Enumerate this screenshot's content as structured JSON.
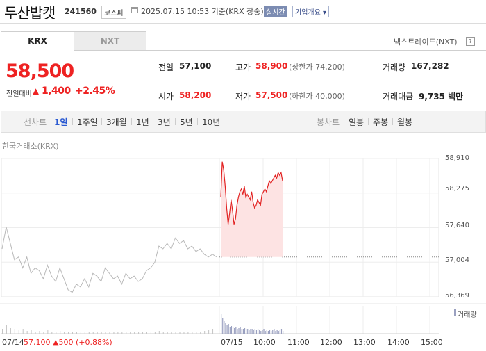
{
  "header": {
    "title": "두산밥캣",
    "code": "241560",
    "market": "코스피",
    "datetime": "2025.07.15 10:53 기준(KRX 장중)",
    "realtime": "실시간",
    "company_info": "기업개요 ▾"
  },
  "tabs": {
    "krx": "KRX",
    "nxt": "NXT"
  },
  "nxt_link": "넥스트레이드(NXT)",
  "help_icon": "?",
  "price": {
    "current": "58,500",
    "prev_label": "전일대비",
    "up_symbol": "▲",
    "change": "1,400",
    "rate": "+2.45%"
  },
  "stats": {
    "prev_close": {
      "label": "전일",
      "value": "57,100"
    },
    "high": {
      "label": "고가",
      "value": "58,900",
      "sub": "(상한가 74,200)"
    },
    "volume": {
      "label": "거래량",
      "value": "167,282"
    },
    "open": {
      "label": "시가",
      "value": "58,200"
    },
    "low": {
      "label": "저가",
      "value": "57,500",
      "sub": "(하한가 40,000)"
    },
    "amount": {
      "label": "거래대금",
      "value": "9,735 백만"
    }
  },
  "toolbar": {
    "line_label": "선차트",
    "periods": [
      "1일",
      "1주일",
      "3개월",
      "1년",
      "3년",
      "5년",
      "10년"
    ],
    "candle_label": "봉차트",
    "candle_periods": [
      "일봉",
      "주봉",
      "월봉"
    ]
  },
  "chart_source": "한국거래소(KRX)",
  "colors": {
    "up": "#e22222",
    "active": "#2c5bd2",
    "fill": "#fde3e3"
  },
  "chart_data": {
    "type": "line",
    "y_ticks": [
      "58,910",
      "58,275",
      "57,640",
      "57,004",
      "56,369"
    ],
    "ylim": [
      56369,
      58910
    ],
    "x_ticks": [
      "07/14",
      "07/15",
      "10:00",
      "11:00",
      "12:00",
      "13:00",
      "14:00",
      "15:00"
    ],
    "prev_close_line": 57100,
    "series": [
      {
        "session": "07/14",
        "values": [
          57250,
          57650,
          57350,
          57050,
          57100,
          56900,
          57100,
          56800,
          56900,
          56850,
          56700,
          56950,
          56750,
          56650,
          56900,
          56700,
          56500,
          56450,
          56600,
          56550,
          56700,
          56550,
          56800,
          56750,
          56650,
          56900,
          56800,
          56700,
          56750,
          56600,
          56800,
          56700,
          56750,
          56650,
          56700,
          56850,
          56900,
          57000,
          57300,
          57250,
          57350,
          57250,
          57450,
          57350,
          57400,
          57250,
          57300,
          57200,
          57250,
          57150,
          57100,
          57150,
          57100
        ]
      },
      {
        "session": "07/15",
        "values": [
          58200,
          58850,
          58700,
          58400,
          58000,
          57700,
          57900,
          58150,
          57950,
          57700,
          57800,
          58050,
          58200,
          58300,
          58350,
          58250,
          58400,
          58200,
          58250,
          58200,
          58150,
          58300,
          58100,
          58000,
          58050,
          58150,
          58100,
          58050,
          58250,
          58300,
          58350,
          58300,
          58400,
          58500,
          58450,
          58500,
          58550,
          58600,
          58550,
          58650,
          58600,
          58650,
          58500
        ]
      }
    ],
    "volume_legend": "거래량",
    "volume": {
      "day1": [
        6,
        12,
        8,
        7,
        5,
        6,
        4,
        5,
        3,
        4,
        3,
        5,
        3,
        3,
        4,
        2,
        3,
        3,
        2,
        3,
        2,
        3,
        2,
        3,
        2,
        2,
        3,
        2,
        3,
        2,
        2,
        3,
        2,
        2,
        3,
        2,
        3,
        2,
        4,
        3,
        3,
        2,
        3,
        2,
        3,
        2,
        3,
        2,
        3,
        4,
        5,
        6,
        9
      ],
      "day2": [
        28,
        22,
        18,
        15,
        12,
        14,
        10,
        11,
        9,
        8,
        10,
        7,
        8,
        9,
        6,
        7,
        8,
        6,
        7,
        5,
        6,
        7,
        5,
        6,
        5,
        6,
        5,
        4,
        5,
        6,
        4,
        5,
        4,
        5,
        4,
        5,
        6,
        4,
        5,
        4,
        5,
        6,
        4
      ]
    }
  },
  "prev_day": {
    "date": "07/14",
    "close": "57,100",
    "change": "▲500",
    "rate": "(+0.88%)"
  }
}
